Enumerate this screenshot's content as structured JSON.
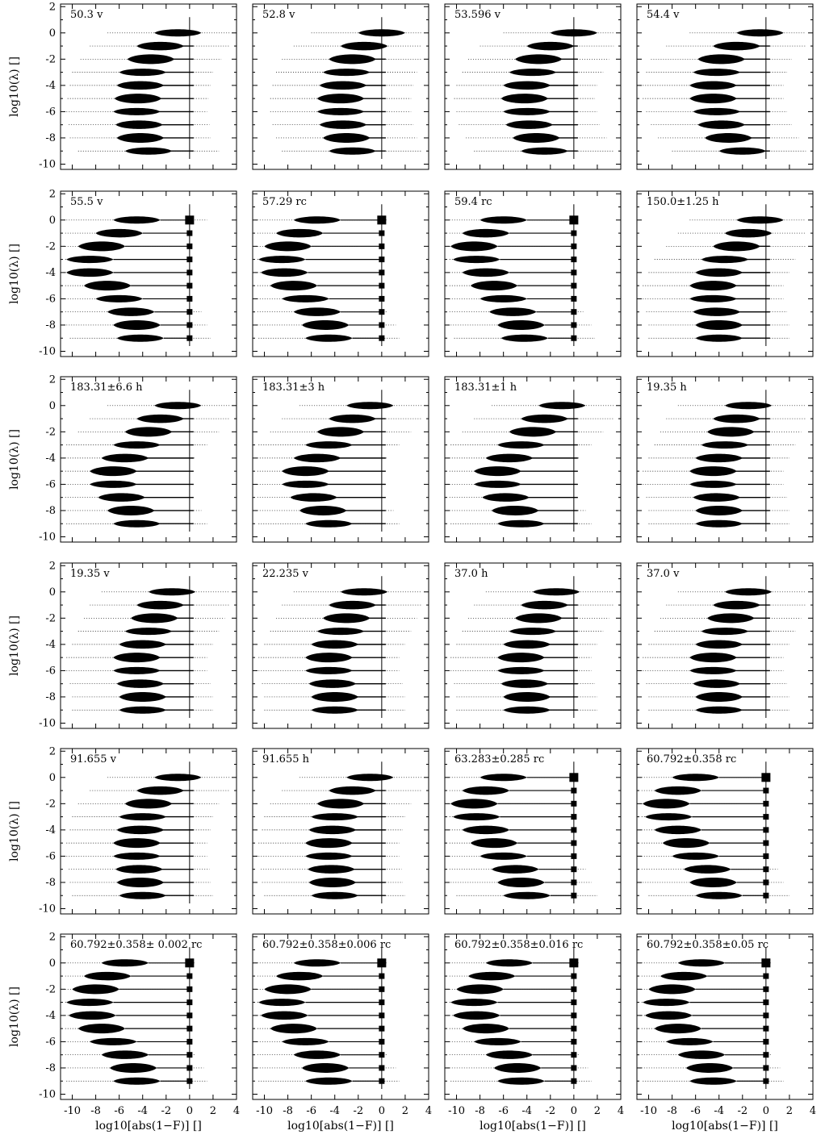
{
  "figure": {
    "ylabel": "log10(λ) []",
    "xlabel": "log10[abs(1−F)] []"
  },
  "chart_data": {
    "type": "violin",
    "xlim": [
      -11,
      4
    ],
    "ylim": [
      -10.4,
      2.2
    ],
    "xticks": [
      -10,
      -8,
      -6,
      -4,
      -2,
      0,
      2,
      4
    ],
    "yticks": [
      2,
      0,
      -2,
      -4,
      -6,
      -8,
      -10
    ],
    "lambda_levels": [
      0,
      -1,
      -2,
      -3,
      -4,
      -5,
      -6,
      -7,
      -8,
      -9
    ],
    "reference_line_x": 0,
    "grid": false,
    "panels": [
      {
        "title": "50.3 v",
        "marker": "line",
        "centers": [
          -1.0,
          -2.5,
          -3.3,
          -4.0,
          -4.2,
          -4.4,
          -4.5,
          -4.3,
          -4.2,
          -3.5
        ]
      },
      {
        "title": "52.8 v",
        "marker": "line",
        "centers": [
          0.0,
          -1.5,
          -2.5,
          -3.0,
          -3.3,
          -3.5,
          -3.5,
          -3.3,
          -3.0,
          -2.5
        ]
      },
      {
        "title": "53.596 v",
        "marker": "line",
        "centers": [
          0.0,
          -2.0,
          -3.0,
          -3.5,
          -4.0,
          -4.2,
          -4.0,
          -3.8,
          -3.2,
          -2.5
        ]
      },
      {
        "title": "54.4 v",
        "marker": "line",
        "centers": [
          -0.5,
          -2.5,
          -3.8,
          -4.2,
          -4.5,
          -4.5,
          -4.2,
          -3.8,
          -3.2,
          -2.0
        ]
      },
      {
        "title": "55.5 v",
        "marker": "square",
        "centers": [
          -4.5,
          -6.0,
          -7.5,
          -8.5,
          -8.5,
          -7.0,
          -6.0,
          -5.0,
          -4.5,
          -4.2
        ]
      },
      {
        "title": "57.29 rc",
        "marker": "square",
        "centers": [
          -5.5,
          -7.0,
          -8.0,
          -8.5,
          -8.3,
          -7.5,
          -6.5,
          -5.5,
          -4.8,
          -4.5
        ]
      },
      {
        "title": "59.4 rc",
        "marker": "square",
        "centers": [
          -6.0,
          -7.5,
          -8.5,
          -8.3,
          -7.5,
          -6.8,
          -6.0,
          -5.2,
          -4.5,
          -4.2
        ]
      },
      {
        "title": "150.0±1.25 h",
        "marker": "line",
        "centers": [
          -0.5,
          -1.5,
          -2.5,
          -3.5,
          -4.0,
          -4.5,
          -4.5,
          -4.2,
          -4.0,
          -4.0
        ]
      },
      {
        "title": "183.31±6.6 h",
        "marker": "line",
        "centers": [
          -1.0,
          -2.5,
          -3.5,
          -4.5,
          -5.5,
          -6.5,
          -6.5,
          -5.8,
          -5.0,
          -4.5
        ]
      },
      {
        "title": "183.31±3 h",
        "marker": "line",
        "centers": [
          -1.0,
          -2.5,
          -3.5,
          -4.5,
          -5.5,
          -6.5,
          -6.5,
          -5.8,
          -5.0,
          -4.5
        ]
      },
      {
        "title": "183.31±1 h",
        "marker": "line",
        "centers": [
          -1.0,
          -2.5,
          -3.5,
          -4.5,
          -5.5,
          -6.5,
          -6.5,
          -5.8,
          -5.0,
          -4.5
        ]
      },
      {
        "title": "19.35 h",
        "marker": "line",
        "centers": [
          -1.5,
          -2.5,
          -3.0,
          -3.5,
          -4.0,
          -4.5,
          -4.5,
          -4.2,
          -4.0,
          -4.0
        ]
      },
      {
        "title": "19.35 v",
        "marker": "line",
        "centers": [
          -1.5,
          -2.5,
          -3.0,
          -3.5,
          -4.0,
          -4.5,
          -4.5,
          -4.2,
          -4.0,
          -4.0
        ]
      },
      {
        "title": "22.235 v",
        "marker": "line",
        "centers": [
          -1.5,
          -2.5,
          -3.0,
          -3.5,
          -4.0,
          -4.5,
          -4.5,
          -4.2,
          -4.0,
          -4.0
        ]
      },
      {
        "title": "37.0 h",
        "marker": "line",
        "centers": [
          -1.5,
          -2.5,
          -3.0,
          -3.5,
          -4.0,
          -4.5,
          -4.5,
          -4.2,
          -4.0,
          -4.0
        ]
      },
      {
        "title": "37.0 v",
        "marker": "line",
        "centers": [
          -1.5,
          -2.5,
          -3.0,
          -3.5,
          -4.0,
          -4.5,
          -4.5,
          -4.2,
          -4.0,
          -4.0
        ]
      },
      {
        "title": "91.655 v",
        "marker": "line",
        "centers": [
          -1.0,
          -2.5,
          -3.5,
          -4.0,
          -4.2,
          -4.5,
          -4.5,
          -4.3,
          -4.2,
          -4.0
        ]
      },
      {
        "title": "91.655 h",
        "marker": "line",
        "centers": [
          -1.0,
          -2.5,
          -3.5,
          -4.0,
          -4.2,
          -4.5,
          -4.5,
          -4.3,
          -4.2,
          -4.0
        ]
      },
      {
        "title": "63.283±0.285 rc",
        "marker": "square",
        "centers": [
          -6.0,
          -7.5,
          -8.5,
          -8.3,
          -7.5,
          -6.8,
          -6.0,
          -5.0,
          -4.5,
          -4.0
        ]
      },
      {
        "title": "60.792±0.358 rc",
        "marker": "square",
        "centers": [
          -6.0,
          -7.5,
          -8.5,
          -8.3,
          -7.5,
          -6.8,
          -6.0,
          -5.0,
          -4.5,
          -4.0
        ]
      },
      {
        "title": "60.792±0.358± 0.002 rc",
        "marker": "square",
        "centers": [
          -5.5,
          -7.0,
          -8.0,
          -8.5,
          -8.3,
          -7.5,
          -6.5,
          -5.5,
          -4.8,
          -4.5
        ]
      },
      {
        "title": "60.792±0.358±0.006 rc",
        "marker": "square",
        "centers": [
          -5.5,
          -7.0,
          -8.0,
          -8.5,
          -8.3,
          -7.5,
          -6.5,
          -5.5,
          -4.8,
          -4.5
        ]
      },
      {
        "title": "60.792±0.358±0.016 rc",
        "marker": "square",
        "centers": [
          -5.5,
          -7.0,
          -8.0,
          -8.5,
          -8.3,
          -7.5,
          -6.5,
          -5.5,
          -4.8,
          -4.5
        ]
      },
      {
        "title": "60.792±0.358±0.05 rc",
        "marker": "square",
        "centers": [
          -5.5,
          -7.0,
          -8.0,
          -8.5,
          -8.3,
          -7.5,
          -6.5,
          -5.5,
          -4.8,
          -4.5
        ]
      }
    ]
  }
}
